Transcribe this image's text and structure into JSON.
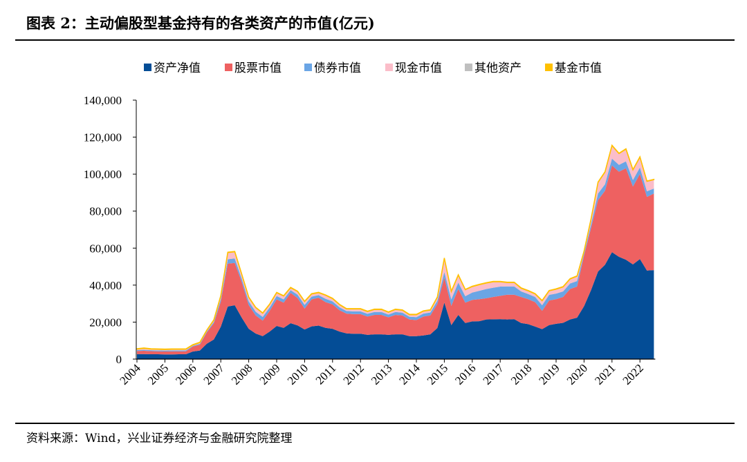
{
  "title": "图表 2：主动偏股型基金持有的各类资产的市值(亿元)",
  "source": "资料来源：Wind，兴业证券经济与金融研究院整理",
  "chart_data": {
    "type": "area",
    "stacked": true,
    "ylim": [
      0,
      140000
    ],
    "y_ticks": [
      "0",
      "20,000",
      "40,000",
      "60,000",
      "80,000",
      "100,000",
      "120,000",
      "140,000"
    ],
    "x_ticks": [
      "2004",
      "2005",
      "2006",
      "2007",
      "2008",
      "2009",
      "2010",
      "2011",
      "2012",
      "2013",
      "2014",
      "2015",
      "2016",
      "2017",
      "2018",
      "2019",
      "2020",
      "2021",
      "2022"
    ],
    "x_frequency": "quarterly",
    "legend_position": "top",
    "grid": false,
    "series": [
      {
        "name": "资产净值",
        "color": "#044D96",
        "values": [
          2700,
          2700,
          2600,
          2600,
          2500,
          2500,
          2600,
          2600,
          4100,
          4600,
          8300,
          10600,
          17500,
          28400,
          29100,
          22400,
          16400,
          13800,
          12400,
          14900,
          17900,
          16900,
          19400,
          18200,
          16000,
          17700,
          18100,
          16900,
          16400,
          14900,
          13900,
          13700,
          13700,
          13100,
          13400,
          13400,
          13100,
          13400,
          13400,
          12400,
          12400,
          12800,
          13400,
          16800,
          30600,
          18400,
          23900,
          19500,
          20400,
          20500,
          21400,
          21500,
          21600,
          21400,
          21600,
          19500,
          18900,
          17600,
          16200,
          18400,
          19100,
          19600,
          21400,
          22400,
          28600,
          37300,
          47300,
          51000,
          57800,
          55300,
          53700,
          51200,
          54100,
          47900,
          48100
        ]
      },
      {
        "name": "股票市值",
        "color": "#EE6161",
        "values": [
          1700,
          1800,
          1700,
          1600,
          1600,
          1700,
          1600,
          1600,
          2700,
          3200,
          6100,
          8700,
          13500,
          23200,
          22900,
          19300,
          12800,
          9800,
          8400,
          11200,
          14400,
          13600,
          16400,
          14800,
          11300,
          14600,
          15100,
          13900,
          13200,
          11500,
          10700,
          10600,
          10600,
          9900,
          10500,
          10500,
          9500,
          10500,
          10200,
          9000,
          8700,
          10200,
          10200,
          13000,
          13500,
          10400,
          14000,
          11000,
          11600,
          11900,
          11500,
          12100,
          12600,
          13400,
          13200,
          14100,
          13500,
          13200,
          9900,
          13300,
          13300,
          14000,
          16500,
          16800,
          27400,
          33600,
          38700,
          40000,
          46900,
          46000,
          49500,
          42100,
          46000,
          39800,
          41400
        ]
      },
      {
        "name": "债券市值",
        "color": "#6AA5E5",
        "values": [
          500,
          500,
          500,
          500,
          500,
          500,
          500,
          500,
          400,
          500,
          500,
          800,
          1500,
          2400,
          2400,
          1800,
          2000,
          2000,
          2000,
          1800,
          1800,
          1800,
          1500,
          1800,
          2000,
          1500,
          1400,
          1800,
          1600,
          1600,
          1400,
          1500,
          1500,
          1500,
          1600,
          1600,
          1500,
          1600,
          1500,
          1500,
          1600,
          1600,
          1600,
          1800,
          3000,
          3500,
          3500,
          3500,
          4000,
          4500,
          5000,
          5000,
          5000,
          4500,
          4500,
          3000,
          2800,
          2800,
          3000,
          3000,
          3000,
          3000,
          3000,
          3000,
          1200,
          2000,
          3500,
          3500,
          3700,
          3700,
          3700,
          3500,
          3500,
          3000,
          2700
        ]
      },
      {
        "name": "现金市值",
        "color": "#FBBDC9",
        "values": [
          400,
          700,
          500,
          500,
          500,
          500,
          500,
          500,
          300,
          500,
          500,
          800,
          1500,
          3500,
          3500,
          2200,
          2100,
          2100,
          1900,
          1600,
          1700,
          1700,
          1200,
          1600,
          1700,
          1300,
          1200,
          1800,
          1400,
          1300,
          1000,
          1200,
          1200,
          1100,
          1200,
          1200,
          1100,
          1200,
          1200,
          1000,
          1200,
          1200,
          1200,
          1700,
          7300,
          4100,
          3900,
          3400,
          3100,
          3200,
          3100,
          3100,
          2500,
          2000,
          2000,
          1600,
          1600,
          1500,
          2300,
          2100,
          2300,
          2300,
          2300,
          2500,
          900,
          2600,
          5900,
          6500,
          6900,
          6000,
          6500,
          5400,
          5500,
          5300,
          4700
        ]
      },
      {
        "name": "其他资产",
        "color": "#BFBFBF",
        "values": [
          100,
          100,
          100,
          100,
          100,
          100,
          100,
          100,
          100,
          100,
          100,
          100,
          100,
          100,
          100,
          100,
          100,
          100,
          100,
          100,
          100,
          100,
          100,
          100,
          100,
          100,
          100,
          100,
          100,
          100,
          100,
          100,
          100,
          100,
          100,
          100,
          100,
          100,
          100,
          100,
          100,
          100,
          100,
          100,
          100,
          100,
          100,
          100,
          100,
          100,
          100,
          100,
          100,
          100,
          100,
          100,
          100,
          100,
          100,
          100,
          100,
          100,
          100,
          100,
          100,
          100,
          100,
          100,
          100,
          100,
          100,
          100,
          100,
          100,
          100
        ]
      },
      {
        "name": "基金市值",
        "color": "#FFC000",
        "values": [
          200,
          200,
          200,
          200,
          200,
          200,
          200,
          200,
          200,
          200,
          200,
          200,
          200,
          200,
          200,
          200,
          200,
          200,
          200,
          200,
          200,
          200,
          200,
          200,
          200,
          200,
          200,
          200,
          200,
          200,
          200,
          200,
          200,
          200,
          200,
          200,
          200,
          200,
          200,
          200,
          200,
          200,
          200,
          200,
          200,
          200,
          200,
          200,
          200,
          200,
          200,
          200,
          200,
          200,
          200,
          200,
          200,
          200,
          200,
          200,
          200,
          200,
          200,
          200,
          200,
          200,
          200,
          200,
          200,
          200,
          200,
          200,
          200,
          200,
          200
        ]
      }
    ]
  }
}
